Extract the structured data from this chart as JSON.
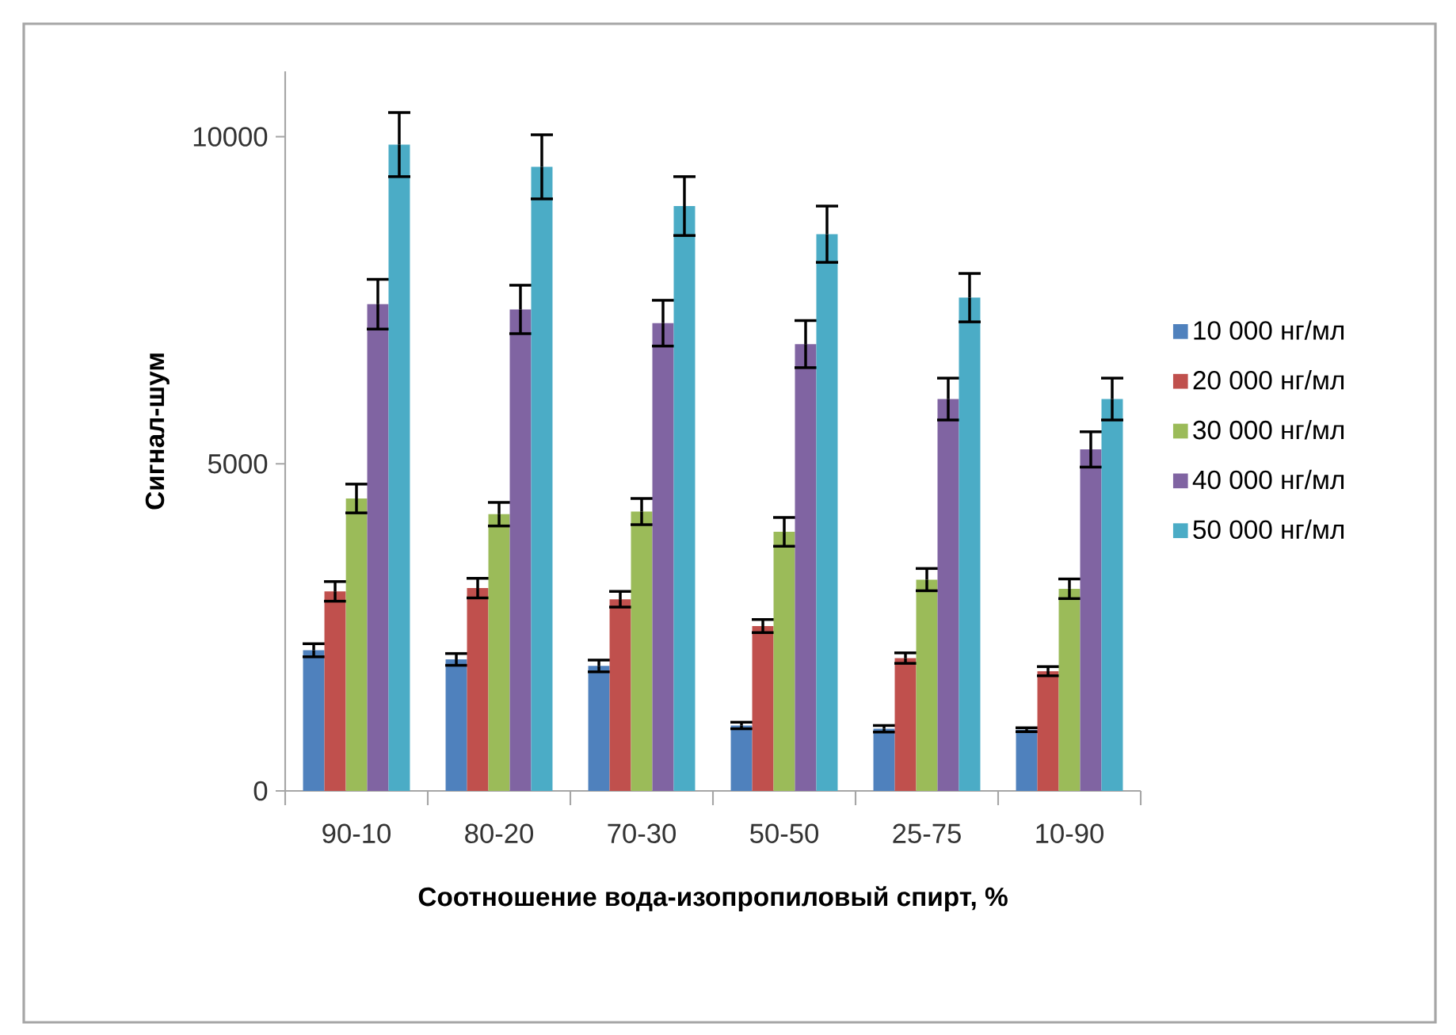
{
  "chart_data": {
    "type": "bar",
    "xlabel": "Соотношение вода-изопропиловый спирт, %",
    "ylabel": "Сигнал-шум",
    "categories": [
      "90-10",
      "80-20",
      "70-30",
      "50-50",
      "25-75",
      "10-90"
    ],
    "series": [
      {
        "name": "10 000 нг/мл",
        "color": "#4f81bd",
        "values": [
          2150,
          2010,
          1910,
          1000,
          950,
          935
        ],
        "errors": [
          100,
          90,
          90,
          50,
          50,
          30
        ]
      },
      {
        "name": "20 000 нг/мл",
        "color": "#c0504d",
        "values": [
          3050,
          3100,
          2930,
          2520,
          2030,
          1830
        ],
        "errors": [
          150,
          150,
          120,
          100,
          80,
          70
        ]
      },
      {
        "name": "30 000 нг/мл",
        "color": "#9bbb59",
        "values": [
          4470,
          4230,
          4270,
          3960,
          3230,
          3090
        ],
        "errors": [
          220,
          180,
          200,
          220,
          170,
          150
        ]
      },
      {
        "name": "40 000 нг/мл",
        "color": "#8064a2",
        "values": [
          7440,
          7360,
          7150,
          6830,
          5990,
          5220
        ],
        "errors": [
          380,
          370,
          350,
          360,
          320,
          270
        ]
      },
      {
        "name": "50 000 нг/мл",
        "color": "#4bacc6",
        "values": [
          9880,
          9540,
          8940,
          8510,
          7540,
          5990
        ],
        "errors": [
          490,
          490,
          450,
          430,
          370,
          320
        ]
      }
    ],
    "ylim": [
      0,
      11000
    ],
    "yticks": [
      0,
      5000,
      10000
    ],
    "legend": "right"
  }
}
